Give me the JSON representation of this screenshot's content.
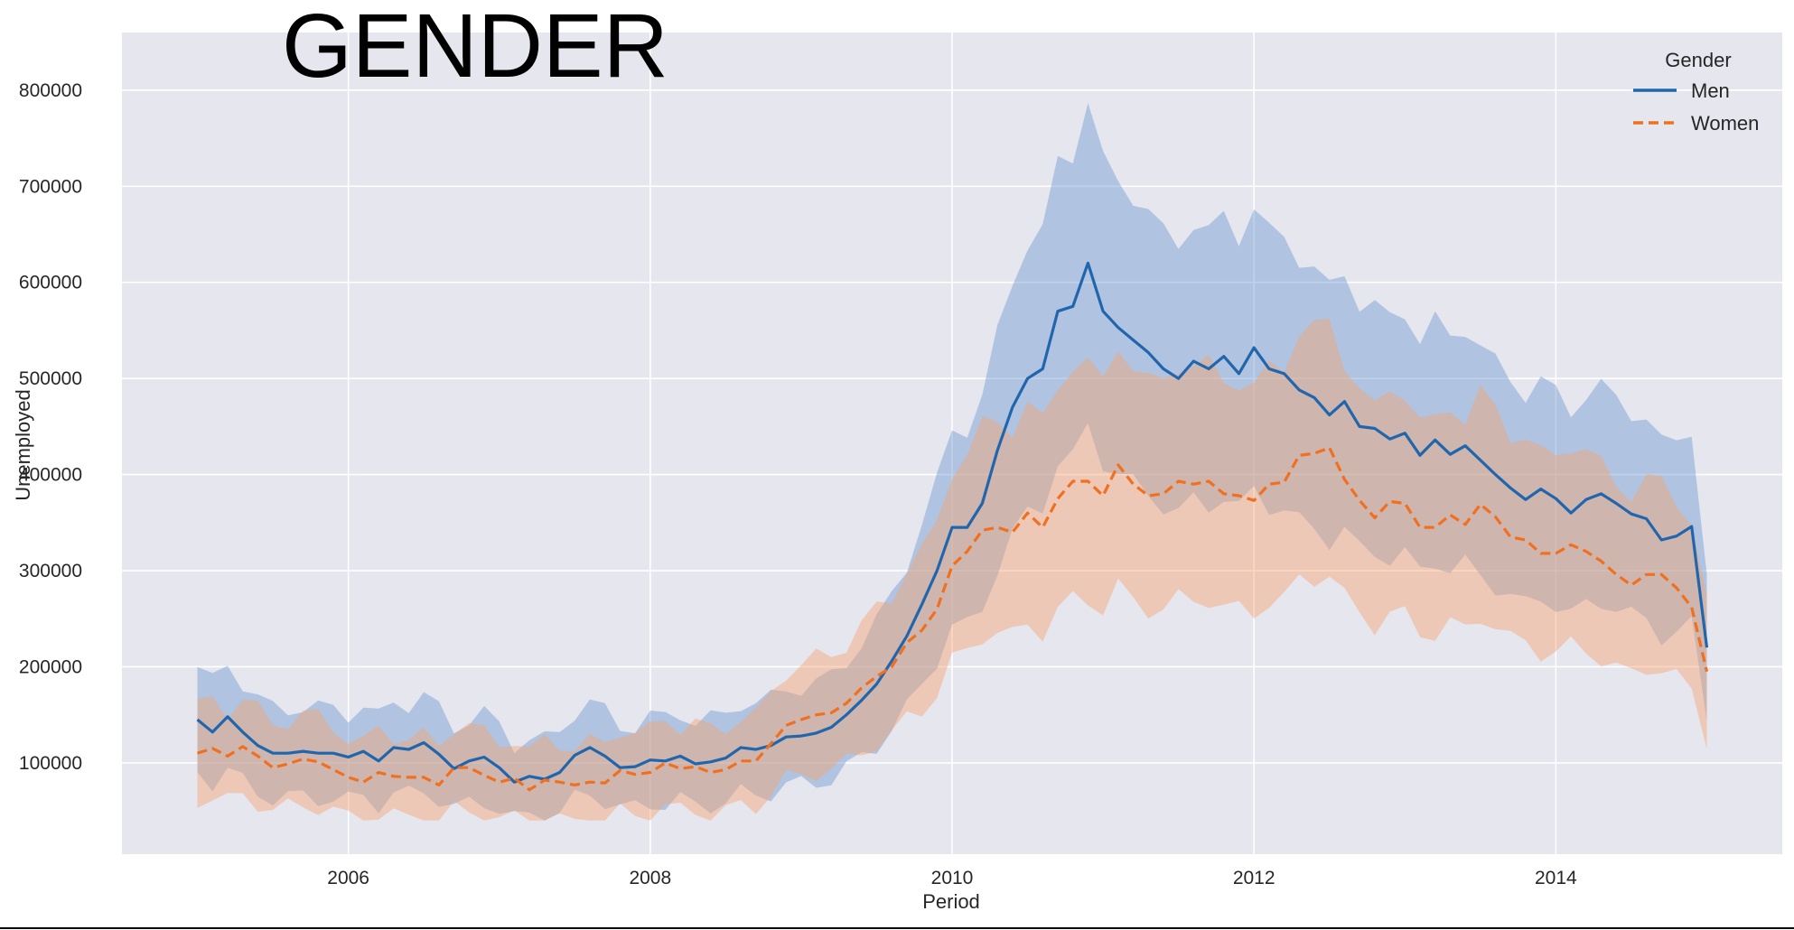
{
  "chart_data": {
    "type": "line",
    "title": "GENDER",
    "xlabel": "Period",
    "ylabel": "Unemployed",
    "xlim": [
      2004.5,
      2015.5
    ],
    "ylim": [
      5000,
      860000
    ],
    "x_ticks": [
      2006,
      2008,
      2010,
      2012,
      2014
    ],
    "y_ticks": [
      100000,
      200000,
      300000,
      400000,
      500000,
      600000,
      700000,
      800000
    ],
    "grid": true,
    "legend": {
      "title": "Gender",
      "position": "top-right"
    },
    "x": [
      2005.0,
      2005.1,
      2005.2,
      2005.3,
      2005.4,
      2005.5,
      2005.6,
      2005.7,
      2005.8,
      2005.9,
      2006.0,
      2006.1,
      2006.2,
      2006.3,
      2006.4,
      2006.5,
      2006.6,
      2006.7,
      2006.8,
      2006.9,
      2007.0,
      2007.1,
      2007.2,
      2007.3,
      2007.4,
      2007.5,
      2007.6,
      2007.7,
      2007.8,
      2007.9,
      2008.0,
      2008.1,
      2008.2,
      2008.3,
      2008.4,
      2008.5,
      2008.6,
      2008.7,
      2008.8,
      2008.9,
      2009.0,
      2009.1,
      2009.2,
      2009.3,
      2009.4,
      2009.5,
      2009.6,
      2009.7,
      2009.8,
      2009.9,
      2010.0,
      2010.1,
      2010.2,
      2010.3,
      2010.4,
      2010.5,
      2010.6,
      2010.7,
      2010.8,
      2010.9,
      2011.0,
      2011.1,
      2011.2,
      2011.3,
      2011.4,
      2011.5,
      2011.6,
      2011.7,
      2011.8,
      2011.9,
      2012.0,
      2012.1,
      2012.2,
      2012.3,
      2012.4,
      2012.5,
      2012.6,
      2012.7,
      2012.8,
      2012.9,
      2013.0,
      2013.1,
      2013.2,
      2013.3,
      2013.4,
      2013.5,
      2013.6,
      2013.7,
      2013.8,
      2013.9,
      2014.0,
      2014.1,
      2014.2,
      2014.3,
      2014.4,
      2014.5,
      2014.6,
      2014.7,
      2014.8,
      2014.9,
      2015.0
    ],
    "series": [
      {
        "name": "Men",
        "color": "#2166ac",
        "dash": "solid",
        "values": [
          145000,
          132000,
          148000,
          132000,
          118000,
          110000,
          110000,
          112000,
          110000,
          110000,
          106000,
          112000,
          102000,
          116000,
          114000,
          121000,
          109000,
          94000,
          102000,
          106000,
          95000,
          80000,
          86000,
          83000,
          90000,
          108000,
          116000,
          107000,
          95000,
          96000,
          103000,
          102000,
          107000,
          99000,
          101000,
          105000,
          116000,
          114000,
          118000,
          127000,
          128000,
          131000,
          137000,
          150000,
          165000,
          182000,
          206000,
          232000,
          265000,
          300000,
          345000,
          345000,
          370000,
          425000,
          470000,
          500000,
          510000,
          570000,
          575000,
          620000,
          570000,
          553000,
          540000,
          527000,
          510000,
          500000,
          518000,
          510000,
          523000,
          505000,
          532000,
          510000,
          505000,
          488000,
          480000,
          462000,
          476000,
          450000,
          448000,
          437000,
          443000,
          420000,
          436000,
          421000,
          430000,
          415000,
          400000,
          386000,
          374000,
          385000,
          375000,
          360000,
          374000,
          380000,
          370000,
          359000,
          354000,
          332000,
          336000,
          346000,
          220000
        ]
      },
      {
        "name": "Women",
        "color": "#f07020",
        "dash": "dashed",
        "values": [
          110000,
          115000,
          107000,
          117000,
          107000,
          95000,
          99000,
          104000,
          101000,
          93000,
          85000,
          80000,
          90000,
          86000,
          85000,
          85000,
          77000,
          95000,
          95000,
          87000,
          80000,
          84000,
          72000,
          82000,
          80000,
          77000,
          80000,
          79000,
          92000,
          88000,
          90000,
          100000,
          94000,
          96000,
          90000,
          93000,
          102000,
          102000,
          120000,
          139000,
          145000,
          150000,
          152000,
          162000,
          178000,
          190000,
          200000,
          225000,
          238000,
          260000,
          305000,
          320000,
          342000,
          345000,
          340000,
          360000,
          345000,
          375000,
          393000,
          393000,
          378000,
          410000,
          390000,
          378000,
          380000,
          393000,
          390000,
          393000,
          380000,
          378000,
          373000,
          390000,
          392000,
          420000,
          422000,
          428000,
          395000,
          373000,
          355000,
          372000,
          370000,
          345000,
          345000,
          358000,
          348000,
          369000,
          356000,
          335000,
          332000,
          318000,
          318000,
          327000,
          320000,
          310000,
          296000,
          285000,
          296000,
          296000,
          282000,
          262000,
          195000
        ]
      }
    ]
  }
}
